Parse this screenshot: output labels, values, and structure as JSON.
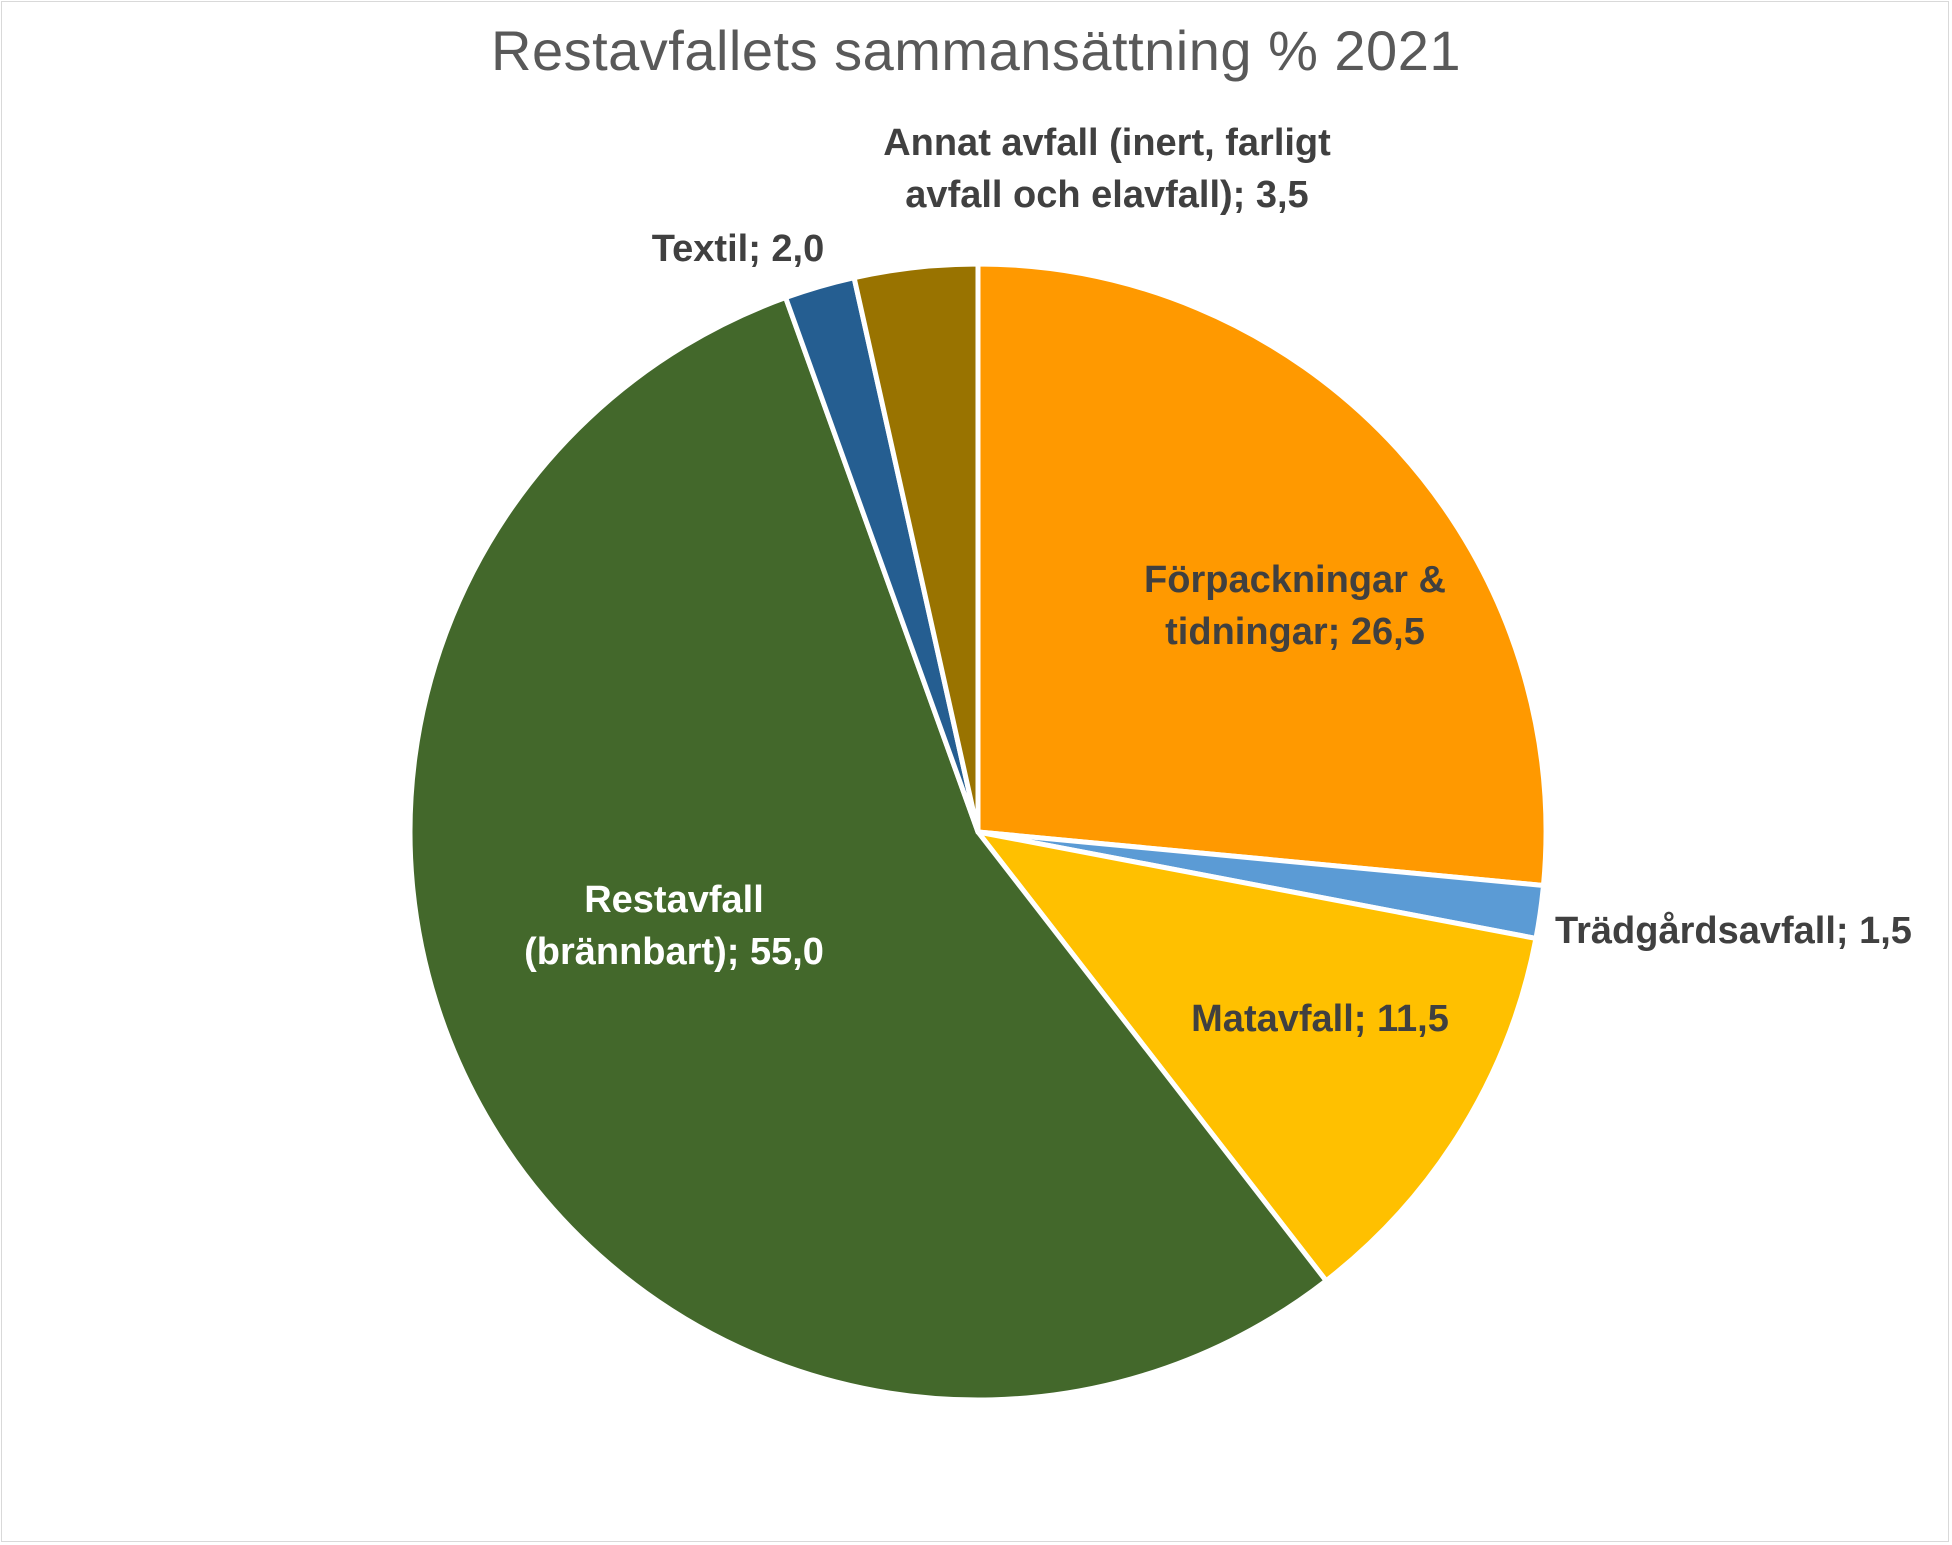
{
  "chart_data": {
    "type": "pie",
    "title": "Restavfallets sammansättning % 2021",
    "slices": [
      {
        "label": "Förpackningar & tidningar",
        "value": 26.5,
        "value_text": "26,5",
        "color": "#ff9900",
        "label_lines": [
          "Förpackningar &",
          "tidningar; 26,5"
        ],
        "label_color": "dark"
      },
      {
        "label": "Trädgårdsavfall",
        "value": 1.5,
        "value_text": "1,5",
        "color": "#5b9bd5",
        "label_lines": [
          "Trädgårdsavfall; 1,5"
        ],
        "label_color": "dark"
      },
      {
        "label": "Matavfall",
        "value": 11.5,
        "value_text": "11,5",
        "color": "#ffc000",
        "label_lines": [
          "Matavfall; 11,5"
        ],
        "label_color": "dark"
      },
      {
        "label": "Restavfall (brännbart)",
        "value": 55.0,
        "value_text": "55,0",
        "color": "#43682b",
        "label_lines": [
          "Restavfall",
          "(brännbart); 55,0"
        ],
        "label_color": "light"
      },
      {
        "label": "Textil",
        "value": 2.0,
        "value_text": "2,0",
        "color": "#255e91",
        "label_lines": [
          "Textil; 2,0"
        ],
        "label_color": "dark"
      },
      {
        "label": "Annat avfall (inert, farligt avfall och elavfall)",
        "value": 3.5,
        "value_text": "3,5",
        "color": "#997300",
        "label_lines": [
          "Annat avfall (inert, farligt",
          "avfall och elavfall); 3,5"
        ],
        "label_color": "dark"
      }
    ],
    "start_angle_deg": 0,
    "direction": "clockwise",
    "legend": "none",
    "data_labels": "category; value"
  }
}
